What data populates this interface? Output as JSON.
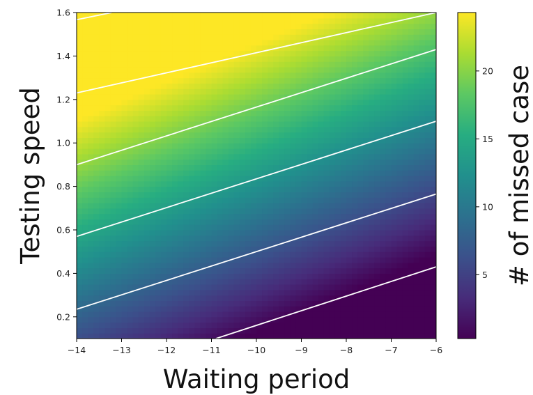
{
  "chart_data": {
    "type": "heatmap",
    "title": "",
    "xlabel": "Waiting period",
    "ylabel": "Testing speed",
    "xlim": [
      -14,
      -6
    ],
    "ylim": [
      0.1,
      1.6
    ],
    "x_ticks": [
      -14,
      -13,
      -12,
      -11,
      -10,
      -9,
      -8,
      -7,
      -6
    ],
    "x_tick_labels": [
      "−14",
      "−13",
      "−12",
      "−11",
      "−10",
      "−9",
      "−8",
      "−7",
      "−6"
    ],
    "y_ticks": [
      0.2,
      0.4,
      0.6,
      0.8,
      1.0,
      1.2,
      1.4,
      1.6
    ],
    "y_tick_labels": [
      "0.2",
      "0.4",
      "0.6",
      "0.8",
      "1.0",
      "1.2",
      "1.4",
      "1.6"
    ],
    "colormap": "viridis",
    "colorbar": {
      "label": "# of missed case",
      "range": [
        0.3,
        24.3
      ],
      "ticks": [
        5,
        10,
        15,
        20
      ],
      "tick_labels": [
        "5",
        "10",
        "15",
        "20"
      ]
    },
    "value_model": {
      "description": "missed cases ≈ value_at_min + speed_coeff*(speed - 0.1) - wait_coeff*(wait + 14), clipped to colorbar range",
      "value_at_min": 6.1,
      "speed_coeff": 18.1,
      "wait_coeff": 1.6
    },
    "contours": {
      "color": "#ffffff",
      "lines": [
        {
          "points": [
            [
              -14,
              1.567
            ],
            [
              -13.22,
              1.6
            ]
          ]
        },
        {
          "points": [
            [
              -14,
              1.23
            ],
            [
              -6,
              1.6
            ]
          ]
        },
        {
          "points": [
            [
              -14,
              0.9
            ],
            [
              -6,
              1.43
            ]
          ]
        },
        {
          "points": [
            [
              -14,
              0.57
            ],
            [
              -6,
              1.1
            ]
          ]
        },
        {
          "points": [
            [
              -14,
              0.235
            ],
            [
              -6,
              0.765
            ]
          ]
        },
        {
          "points": [
            [
              -10.9,
              0.1
            ],
            [
              -6,
              0.43
            ]
          ]
        }
      ]
    }
  }
}
